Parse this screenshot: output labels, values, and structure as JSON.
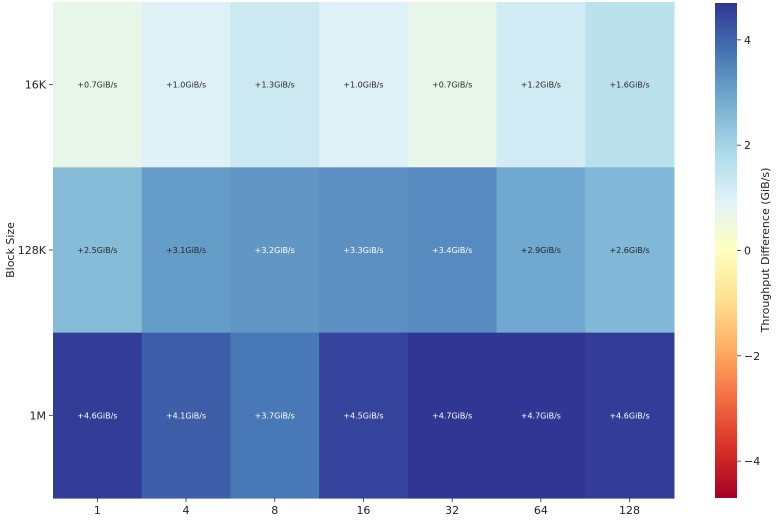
{
  "chart_data": {
    "type": "heatmap",
    "title": "",
    "xlabel": "",
    "ylabel": "Block Size",
    "x_categories": [
      "1",
      "4",
      "8",
      "16",
      "32",
      "64",
      "128"
    ],
    "y_categories": [
      "16K",
      "128K",
      "1M"
    ],
    "values": [
      [
        0.7,
        1.0,
        1.3,
        1.0,
        0.7,
        1.2,
        1.6
      ],
      [
        2.5,
        3.1,
        3.2,
        3.3,
        3.4,
        2.9,
        2.6
      ],
      [
        4.6,
        4.1,
        3.7,
        4.5,
        4.7,
        4.7,
        4.6
      ]
    ],
    "cell_labels": [
      [
        "+0.7GiB/s",
        "+1.0GiB/s",
        "+1.3GiB/s",
        "+1.0GiB/s",
        "+0.7GiB/s",
        "+1.2GiB/s",
        "+1.6GiB/s"
      ],
      [
        "+2.5GiB/s",
        "+3.1GiB/s",
        "+3.2GiB/s",
        "+3.3GiB/s",
        "+3.4GiB/s",
        "+2.9GiB/s",
        "+2.6GiB/s"
      ],
      [
        "+4.6GiB/s",
        "+4.1GiB/s",
        "+3.7GiB/s",
        "+4.5GiB/s",
        "+4.7GiB/s",
        "+4.7GiB/s",
        "+4.6GiB/s"
      ]
    ],
    "colorbar": {
      "label": "Throughput Difference (GiB/s)",
      "vmin": -4.7,
      "vmax": 4.7,
      "ticks": [
        4,
        2,
        0,
        -2,
        -4
      ],
      "tick_labels": [
        "4",
        "2",
        "0",
        "−2",
        "−4"
      ],
      "colormap": "RdYlBu",
      "colormap_stops": [
        "#a50026",
        "#d73027",
        "#f46d43",
        "#fdae61",
        "#fee090",
        "#ffffbf",
        "#e0f3f8",
        "#abd9e9",
        "#74add1",
        "#4575b4",
        "#313695"
      ]
    },
    "grid": false,
    "legend": "colorbar-right"
  }
}
